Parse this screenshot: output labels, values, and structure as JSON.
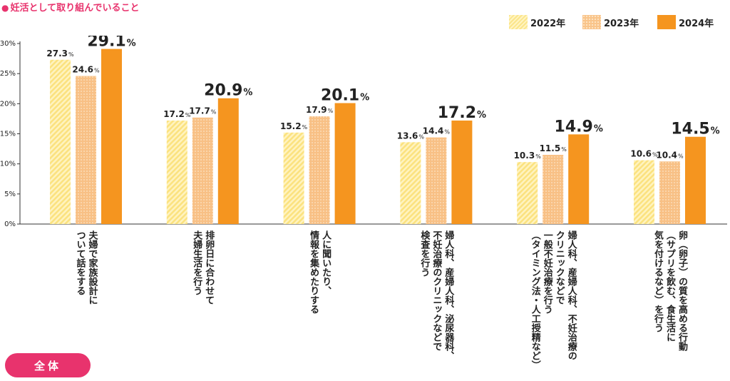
{
  "page": {
    "title_marker": "●",
    "title": "妊活として取り組んでいること",
    "tab_label": "全体"
  },
  "chart_data": {
    "type": "bar",
    "title": "妊活として取り組んでいること",
    "ylim": [
      0,
      30
    ],
    "yticks": [
      "0%",
      "5%",
      "10%",
      "15%",
      "20%",
      "25%",
      "30%"
    ],
    "unit": "%",
    "legend_position": "top-right",
    "grid": false,
    "categories": [
      [
        "夫婦で家族設計に",
        "ついて話をする"
      ],
      [
        "排卵日に合わせて",
        "夫婦生活を行う"
      ],
      [
        "人に聞いたり、",
        "情報を集めたりする"
      ],
      [
        "婦人科、産婦人科、泌尿器科、",
        "不妊治療のクリニックなどで",
        "検査を行う"
      ],
      [
        "婦人科、産婦人科、不妊治療の",
        "クリニックなどで",
        "一般不妊治療を行う",
        "（タイミング法・人工授精など）"
      ],
      [
        "卵（卵子）の質を高める行動",
        "（サプリを飲む、食生活に",
        "気を付けるなど）を行う"
      ]
    ],
    "series": [
      {
        "name": "2022年",
        "color": "#fbe58a",
        "values": [
          27.3,
          17.2,
          15.2,
          13.6,
          10.3,
          10.6
        ]
      },
      {
        "name": "2023年",
        "color": "#f9c48a",
        "values": [
          24.6,
          17.7,
          17.9,
          14.4,
          11.5,
          10.4
        ]
      },
      {
        "name": "2024年",
        "color": "#f5951f",
        "values": [
          29.1,
          20.9,
          20.1,
          17.2,
          14.9,
          14.5
        ]
      }
    ]
  }
}
